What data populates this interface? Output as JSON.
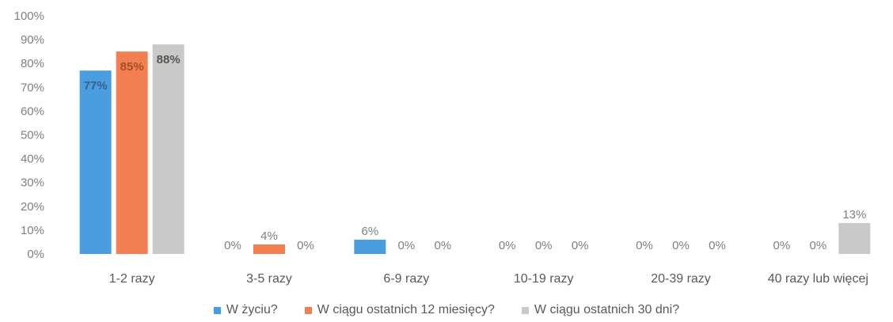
{
  "chart_data": {
    "type": "bar",
    "categories": [
      "1-2 razy",
      "3-5 razy",
      "6-9 razy",
      "10-19 razy",
      "20-39 razy",
      "40 razy lub więcej"
    ],
    "series": [
      {
        "name": "W życiu?",
        "color": "#4a9ee0",
        "values": [
          77,
          0,
          6,
          0,
          0,
          0
        ],
        "labels": [
          "77%",
          "0%",
          "6%",
          "0%",
          "0%",
          "0%"
        ]
      },
      {
        "name": "W ciągu ostatnich 12 miesięcy?",
        "color": "#f27f52",
        "values": [
          85,
          4,
          0,
          0,
          0,
          0
        ],
        "labels": [
          "85%",
          "4%",
          "0%",
          "0%",
          "0%",
          "0%"
        ]
      },
      {
        "name": "W ciągu ostatnich 30 dni?",
        "color": "#c9c9c9",
        "values": [
          88,
          0,
          0,
          0,
          0,
          13
        ],
        "labels": [
          "88%",
          "0%",
          "0%",
          "0%",
          "0%",
          "13%"
        ]
      }
    ],
    "yticks": [
      "0%",
      "10%",
      "20%",
      "30%",
      "40%",
      "50%",
      "60%",
      "70%",
      "80%",
      "90%",
      "100%"
    ],
    "ylim": [
      0,
      100
    ],
    "grid": false,
    "legend_position": "bottom"
  }
}
